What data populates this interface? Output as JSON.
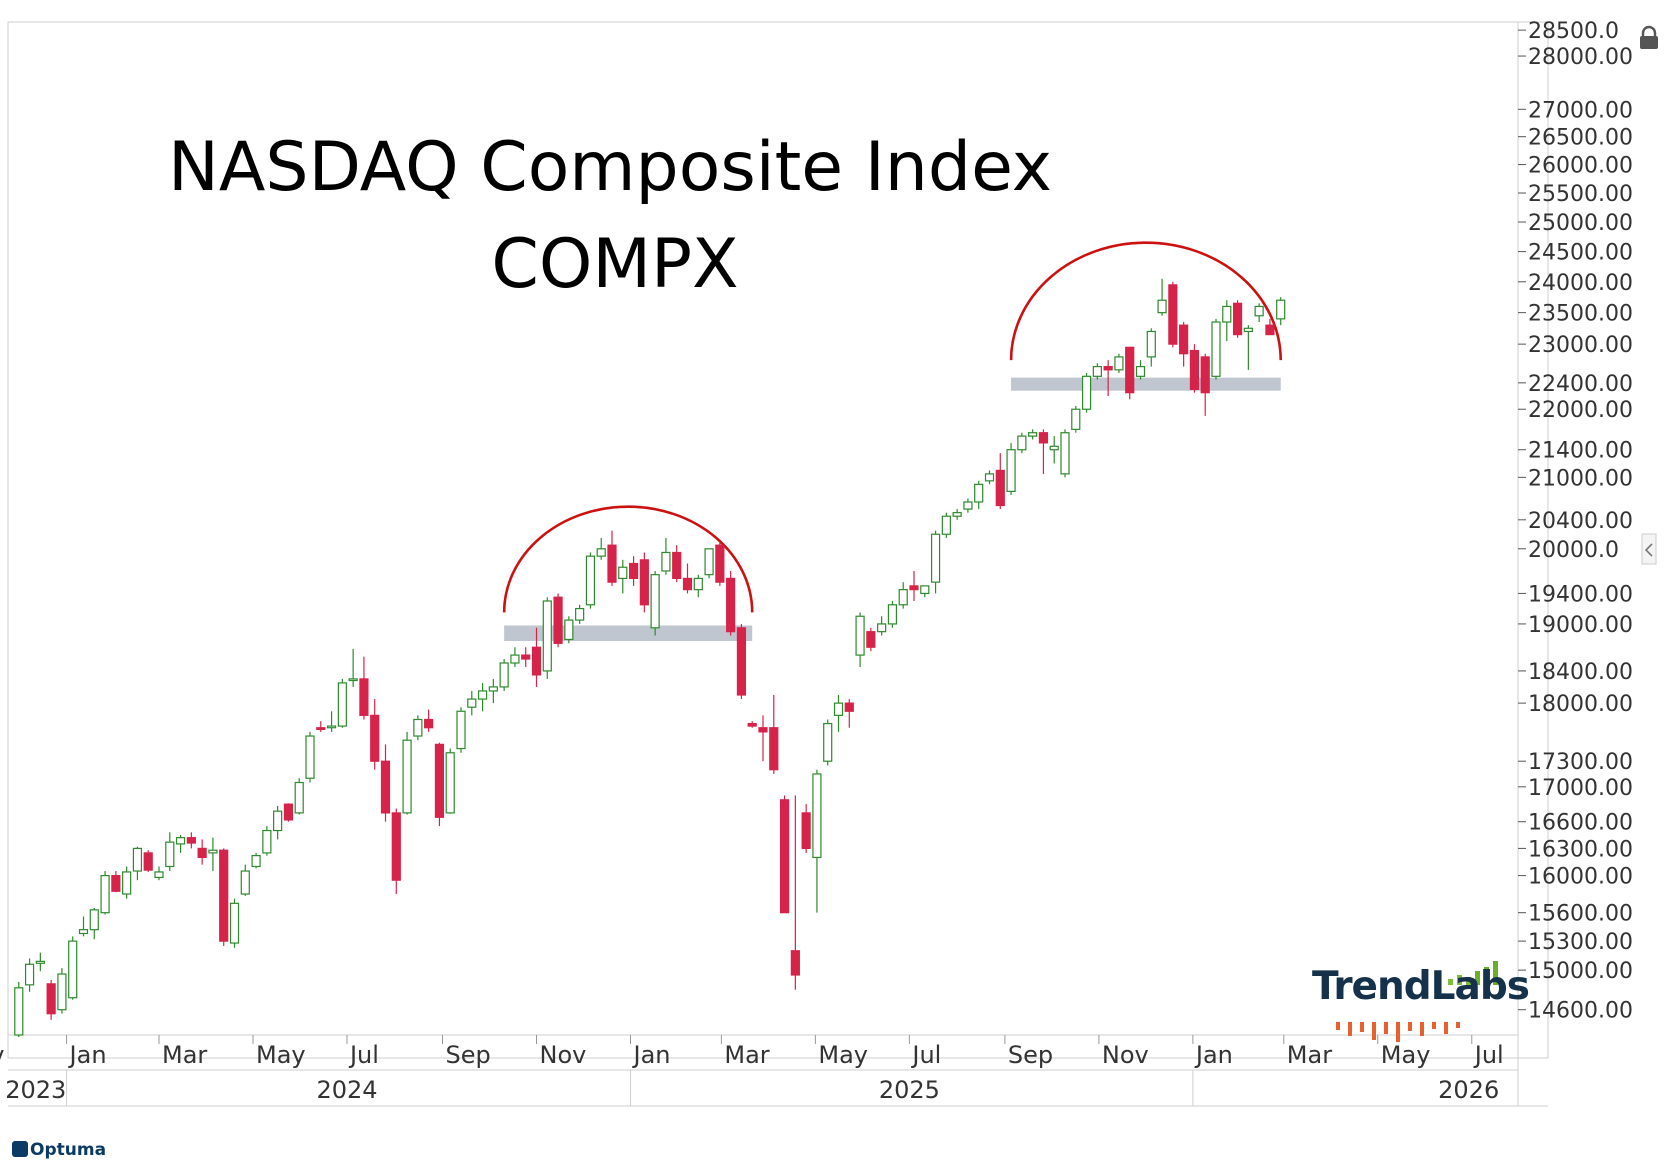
{
  "title": "NASDAQ Composite  Index",
  "symbol": "COMPX",
  "brand": "Optuma",
  "watermark": "TrendLabs",
  "colors": {
    "up": "#2d8a2d",
    "down": "#d6234a",
    "arc": "#cc1111",
    "band": "#bfc6cf",
    "grid": "#d9d9d9"
  },
  "icons": {
    "lock": "lock-icon",
    "collapse": "chevron-left-icon"
  },
  "chart_data": {
    "type": "candlestick",
    "y_scale": "log",
    "ylim": [
      14350,
      28600
    ],
    "y_ticks": [
      {
        "v": 28500,
        "label": "28500.0"
      },
      {
        "v": 28000,
        "label": "28000.00"
      },
      {
        "v": 27000,
        "label": "27000.00"
      },
      {
        "v": 26500,
        "label": "26500.00"
      },
      {
        "v": 26000,
        "label": "26000.00"
      },
      {
        "v": 25500,
        "label": "25500.00"
      },
      {
        "v": 25000,
        "label": "25000.00"
      },
      {
        "v": 24500,
        "label": "24500.00"
      },
      {
        "v": 24000,
        "label": "24000.00"
      },
      {
        "v": 23500,
        "label": "23500.00"
      },
      {
        "v": 23000,
        "label": "23000.00"
      },
      {
        "v": 22400,
        "label": "22400.00"
      },
      {
        "v": 22000,
        "label": "22000.00"
      },
      {
        "v": 21400,
        "label": "21400.00"
      },
      {
        "v": 21000,
        "label": "21000.00"
      },
      {
        "v": 20400,
        "label": "20400.00"
      },
      {
        "v": 20000,
        "label": "20000.0"
      },
      {
        "v": 19400,
        "label": "19400.00"
      },
      {
        "v": 19000,
        "label": "19000.00"
      },
      {
        "v": 18400,
        "label": "18400.00"
      },
      {
        "v": 18000,
        "label": "18000.00"
      },
      {
        "v": 17300,
        "label": "17300.00"
      },
      {
        "v": 17000,
        "label": "17000.00"
      },
      {
        "v": 16600,
        "label": "16600.00"
      },
      {
        "v": 16300,
        "label": "16300.00"
      },
      {
        "v": 16000,
        "label": "16000.00"
      },
      {
        "v": 15600,
        "label": "15600.00"
      },
      {
        "v": 15300,
        "label": "15300.00"
      },
      {
        "v": 15000,
        "label": "15000.00"
      },
      {
        "v": 14600,
        "label": "14600.00"
      }
    ],
    "x_range": [
      "2023-11-24",
      "2026-07-31"
    ],
    "month_ticks": [
      {
        "d": "2023-11-01",
        "label": "ov"
      },
      {
        "d": "2024-01-01",
        "label": "Jan"
      },
      {
        "d": "2024-03-01",
        "label": "Mar"
      },
      {
        "d": "2024-05-01",
        "label": "May"
      },
      {
        "d": "2024-07-01",
        "label": "Jul"
      },
      {
        "d": "2024-09-01",
        "label": "Sep"
      },
      {
        "d": "2024-11-01",
        "label": "Nov"
      },
      {
        "d": "2025-01-01",
        "label": "Jan"
      },
      {
        "d": "2025-03-01",
        "label": "Mar"
      },
      {
        "d": "2025-05-01",
        "label": "May"
      },
      {
        "d": "2025-07-01",
        "label": "Jul"
      },
      {
        "d": "2025-09-01",
        "label": "Sep"
      },
      {
        "d": "2025-11-01",
        "label": "Nov"
      },
      {
        "d": "2026-01-01",
        "label": "Jan"
      },
      {
        "d": "2026-03-01",
        "label": "Mar"
      },
      {
        "d": "2026-05-01",
        "label": "May"
      },
      {
        "d": "2026-07-01",
        "label": "Jul"
      }
    ],
    "year_labels": [
      {
        "label": "2023",
        "at": "2023-12-12"
      },
      {
        "label": "2024",
        "at": "2024-07-01"
      },
      {
        "label": "2025",
        "at": "2025-07-01"
      },
      {
        "label": "2026",
        "at": "2026-06-29"
      }
    ],
    "year_dividers": [
      "2024-01-01",
      "2025-01-01",
      "2026-01-01"
    ],
    "series": [
      {
        "date": "2023-12-01",
        "o": 14350,
        "h": 14880,
        "l": 14330,
        "c": 14820
      },
      {
        "date": "2023-12-08",
        "o": 14850,
        "h": 15120,
        "l": 14780,
        "c": 15060
      },
      {
        "date": "2023-12-15",
        "o": 15070,
        "h": 15180,
        "l": 14990,
        "c": 15090
      },
      {
        "date": "2023-12-22",
        "o": 14860,
        "h": 14900,
        "l": 14500,
        "c": 14560
      },
      {
        "date": "2023-12-29",
        "o": 14600,
        "h": 15020,
        "l": 14560,
        "c": 14960
      },
      {
        "date": "2024-01-05",
        "o": 14720,
        "h": 15350,
        "l": 14700,
        "c": 15300
      },
      {
        "date": "2024-01-12",
        "o": 15380,
        "h": 15560,
        "l": 15350,
        "c": 15420
      },
      {
        "date": "2024-01-19",
        "o": 15420,
        "h": 15650,
        "l": 15320,
        "c": 15630
      },
      {
        "date": "2024-01-26",
        "o": 15600,
        "h": 16050,
        "l": 15580,
        "c": 16000
      },
      {
        "date": "2024-02-02",
        "o": 16000,
        "h": 16050,
        "l": 15820,
        "c": 15830
      },
      {
        "date": "2024-02-09",
        "o": 15800,
        "h": 16100,
        "l": 15750,
        "c": 16040
      },
      {
        "date": "2024-02-16",
        "o": 16050,
        "h": 16320,
        "l": 15950,
        "c": 16300
      },
      {
        "date": "2024-02-23",
        "o": 16250,
        "h": 16280,
        "l": 16040,
        "c": 16060
      },
      {
        "date": "2024-03-01",
        "o": 15980,
        "h": 16100,
        "l": 15950,
        "c": 16040
      },
      {
        "date": "2024-03-08",
        "o": 16100,
        "h": 16480,
        "l": 16050,
        "c": 16370
      },
      {
        "date": "2024-03-15",
        "o": 16350,
        "h": 16450,
        "l": 16250,
        "c": 16420
      },
      {
        "date": "2024-03-22",
        "o": 16420,
        "h": 16480,
        "l": 16300,
        "c": 16360
      },
      {
        "date": "2024-03-29",
        "o": 16300,
        "h": 16400,
        "l": 16120,
        "c": 16200
      },
      {
        "date": "2024-04-05",
        "o": 16250,
        "h": 16420,
        "l": 16050,
        "c": 16280
      },
      {
        "date": "2024-04-12",
        "o": 16280,
        "h": 16300,
        "l": 15250,
        "c": 15300
      },
      {
        "date": "2024-04-19",
        "o": 15280,
        "h": 15750,
        "l": 15230,
        "c": 15700
      },
      {
        "date": "2024-04-26",
        "o": 15800,
        "h": 16120,
        "l": 15780,
        "c": 16050
      },
      {
        "date": "2024-05-03",
        "o": 16100,
        "h": 16250,
        "l": 16080,
        "c": 16220
      },
      {
        "date": "2024-05-10",
        "o": 16250,
        "h": 16550,
        "l": 16220,
        "c": 16500
      },
      {
        "date": "2024-05-17",
        "o": 16500,
        "h": 16780,
        "l": 16400,
        "c": 16720
      },
      {
        "date": "2024-05-24",
        "o": 16800,
        "h": 16810,
        "l": 16600,
        "c": 16620
      },
      {
        "date": "2024-05-31",
        "o": 16700,
        "h": 17100,
        "l": 16680,
        "c": 17050
      },
      {
        "date": "2024-06-07",
        "o": 17100,
        "h": 17650,
        "l": 17050,
        "c": 17600
      },
      {
        "date": "2024-06-14",
        "o": 17700,
        "h": 17780,
        "l": 17650,
        "c": 17680
      },
      {
        "date": "2024-06-21",
        "o": 17700,
        "h": 17900,
        "l": 17650,
        "c": 17720
      },
      {
        "date": "2024-06-28",
        "o": 17720,
        "h": 18300,
        "l": 17700,
        "c": 18250
      },
      {
        "date": "2024-07-05",
        "o": 18280,
        "h": 18680,
        "l": 18200,
        "c": 18300
      },
      {
        "date": "2024-07-12",
        "o": 18300,
        "h": 18580,
        "l": 17800,
        "c": 17850
      },
      {
        "date": "2024-07-19",
        "o": 17850,
        "h": 18050,
        "l": 17200,
        "c": 17300
      },
      {
        "date": "2024-07-26",
        "o": 17300,
        "h": 17500,
        "l": 16600,
        "c": 16700
      },
      {
        "date": "2024-08-02",
        "o": 16700,
        "h": 16750,
        "l": 15800,
        "c": 15950
      },
      {
        "date": "2024-08-09",
        "o": 16700,
        "h": 17650,
        "l": 16680,
        "c": 17550
      },
      {
        "date": "2024-08-16",
        "o": 17600,
        "h": 17850,
        "l": 17550,
        "c": 17800
      },
      {
        "date": "2024-08-23",
        "o": 17800,
        "h": 17920,
        "l": 17650,
        "c": 17700
      },
      {
        "date": "2024-08-30",
        "o": 17500,
        "h": 17520,
        "l": 16550,
        "c": 16650
      },
      {
        "date": "2024-09-06",
        "o": 16700,
        "h": 17450,
        "l": 16690,
        "c": 17400
      },
      {
        "date": "2024-09-13",
        "o": 17450,
        "h": 17950,
        "l": 17400,
        "c": 17900
      },
      {
        "date": "2024-09-20",
        "o": 17950,
        "h": 18150,
        "l": 17850,
        "c": 18050
      },
      {
        "date": "2024-09-27",
        "o": 18050,
        "h": 18250,
        "l": 17900,
        "c": 18150
      },
      {
        "date": "2024-10-04",
        "o": 18150,
        "h": 18300,
        "l": 18000,
        "c": 18200
      },
      {
        "date": "2024-10-11",
        "o": 18200,
        "h": 18550,
        "l": 18150,
        "c": 18500
      },
      {
        "date": "2024-10-18",
        "o": 18500,
        "h": 18700,
        "l": 18450,
        "c": 18600
      },
      {
        "date": "2024-10-25",
        "o": 18600,
        "h": 18700,
        "l": 18450,
        "c": 18550
      },
      {
        "date": "2024-11-01",
        "o": 18700,
        "h": 18950,
        "l": 18200,
        "c": 18350
      },
      {
        "date": "2024-11-08",
        "o": 18400,
        "h": 19350,
        "l": 18300,
        "c": 19300
      },
      {
        "date": "2024-11-15",
        "o": 19350,
        "h": 19400,
        "l": 18700,
        "c": 18750
      },
      {
        "date": "2024-11-22",
        "o": 18800,
        "h": 19100,
        "l": 18750,
        "c": 19050
      },
      {
        "date": "2024-11-29",
        "o": 19050,
        "h": 19250,
        "l": 19000,
        "c": 19200
      },
      {
        "date": "2024-12-06",
        "o": 19250,
        "h": 19950,
        "l": 19200,
        "c": 19900
      },
      {
        "date": "2024-12-13",
        "o": 19900,
        "h": 20150,
        "l": 19850,
        "c": 20000
      },
      {
        "date": "2024-12-20",
        "o": 20050,
        "h": 20250,
        "l": 19500,
        "c": 19550
      },
      {
        "date": "2024-12-27",
        "o": 19600,
        "h": 19850,
        "l": 19400,
        "c": 19750
      },
      {
        "date": "2025-01-03",
        "o": 19800,
        "h": 19900,
        "l": 19500,
        "c": 19600
      },
      {
        "date": "2025-01-10",
        "o": 19850,
        "h": 19950,
        "l": 19150,
        "c": 19250
      },
      {
        "date": "2025-01-17",
        "o": 18950,
        "h": 19700,
        "l": 18850,
        "c": 19650
      },
      {
        "date": "2025-01-24",
        "o": 19700,
        "h": 20150,
        "l": 19650,
        "c": 19950
      },
      {
        "date": "2025-01-31",
        "o": 19950,
        "h": 20050,
        "l": 19550,
        "c": 19600
      },
      {
        "date": "2025-02-07",
        "o": 19600,
        "h": 19800,
        "l": 19400,
        "c": 19450
      },
      {
        "date": "2025-02-14",
        "o": 19450,
        "h": 19650,
        "l": 19350,
        "c": 19600
      },
      {
        "date": "2025-02-21",
        "o": 19650,
        "h": 20000,
        "l": 19600,
        "c": 20000
      },
      {
        "date": "2025-02-28",
        "o": 20050,
        "h": 20100,
        "l": 19500,
        "c": 19550
      },
      {
        "date": "2025-03-07",
        "o": 19600,
        "h": 19700,
        "l": 18850,
        "c": 18900
      },
      {
        "date": "2025-03-14",
        "o": 18950,
        "h": 19000,
        "l": 18050,
        "c": 18100
      },
      {
        "date": "2025-03-21",
        "o": 17750,
        "h": 17780,
        "l": 17700,
        "c": 17720
      },
      {
        "date": "2025-03-28",
        "o": 17700,
        "h": 17850,
        "l": 17300,
        "c": 17650
      },
      {
        "date": "2025-04-04",
        "o": 17700,
        "h": 18100,
        "l": 17150,
        "c": 17200
      },
      {
        "date": "2025-04-11",
        "o": 16850,
        "h": 16900,
        "l": 15800,
        "c": 15600
      },
      {
        "date": "2025-04-18",
        "o": 15200,
        "h": 16900,
        "l": 14800,
        "c": 14950
      },
      {
        "date": "2025-04-25",
        "o": 16700,
        "h": 16800,
        "l": 16250,
        "c": 16300
      },
      {
        "date": "2025-05-02",
        "o": 16200,
        "h": 17200,
        "l": 15600,
        "c": 17150
      },
      {
        "date": "2025-05-09",
        "o": 17300,
        "h": 17800,
        "l": 17250,
        "c": 17750
      },
      {
        "date": "2025-05-16",
        "o": 17850,
        "h": 18100,
        "l": 17650,
        "c": 18000
      },
      {
        "date": "2025-05-23",
        "o": 18000,
        "h": 18050,
        "l": 17700,
        "c": 17900
      },
      {
        "date": "2025-05-30",
        "o": 18600,
        "h": 19150,
        "l": 18450,
        "c": 19100
      },
      {
        "date": "2025-06-06",
        "o": 18900,
        "h": 18950,
        "l": 18650,
        "c": 18700
      },
      {
        "date": "2025-06-13",
        "o": 18900,
        "h": 19100,
        "l": 18850,
        "c": 19000
      },
      {
        "date": "2025-06-20",
        "o": 19000,
        "h": 19300,
        "l": 18950,
        "c": 19250
      },
      {
        "date": "2025-06-27",
        "o": 19250,
        "h": 19550,
        "l": 19200,
        "c": 19450
      },
      {
        "date": "2025-07-04",
        "o": 19500,
        "h": 19700,
        "l": 19300,
        "c": 19450
      },
      {
        "date": "2025-07-11",
        "o": 19400,
        "h": 19500,
        "l": 19350,
        "c": 19500
      },
      {
        "date": "2025-07-18",
        "o": 19550,
        "h": 20250,
        "l": 19400,
        "c": 20200
      },
      {
        "date": "2025-07-25",
        "o": 20200,
        "h": 20500,
        "l": 20150,
        "c": 20450
      },
      {
        "date": "2025-08-01",
        "o": 20450,
        "h": 20550,
        "l": 20400,
        "c": 20500
      },
      {
        "date": "2025-08-08",
        "o": 20550,
        "h": 20700,
        "l": 20500,
        "c": 20650
      },
      {
        "date": "2025-08-15",
        "o": 20650,
        "h": 20950,
        "l": 20550,
        "c": 20900
      },
      {
        "date": "2025-08-22",
        "o": 20950,
        "h": 21100,
        "l": 20900,
        "c": 21050
      },
      {
        "date": "2025-08-29",
        "o": 21100,
        "h": 21350,
        "l": 20550,
        "c": 20600
      },
      {
        "date": "2025-09-05",
        "o": 20800,
        "h": 21500,
        "l": 20750,
        "c": 21400
      },
      {
        "date": "2025-09-12",
        "o": 21400,
        "h": 21650,
        "l": 21350,
        "c": 21600
      },
      {
        "date": "2025-09-19",
        "o": 21600,
        "h": 21700,
        "l": 21550,
        "c": 21650
      },
      {
        "date": "2025-09-26",
        "o": 21650,
        "h": 21700,
        "l": 21050,
        "c": 21500
      },
      {
        "date": "2025-10-03",
        "o": 21400,
        "h": 21600,
        "l": 21200,
        "c": 21450
      },
      {
        "date": "2025-10-10",
        "o": 21050,
        "h": 21700,
        "l": 21000,
        "c": 21650
      },
      {
        "date": "2025-10-17",
        "o": 21700,
        "h": 22050,
        "l": 21650,
        "c": 22000
      },
      {
        "date": "2025-10-24",
        "o": 22000,
        "h": 22550,
        "l": 21950,
        "c": 22500
      },
      {
        "date": "2025-10-31",
        "o": 22500,
        "h": 22700,
        "l": 22450,
        "c": 22650
      },
      {
        "date": "2025-11-07",
        "o": 22650,
        "h": 22750,
        "l": 22200,
        "c": 22600
      },
      {
        "date": "2025-11-14",
        "o": 22600,
        "h": 22850,
        "l": 22550,
        "c": 22800
      },
      {
        "date": "2025-11-21",
        "o": 22950,
        "h": 22950,
        "l": 22150,
        "c": 22250
      },
      {
        "date": "2025-11-28",
        "o": 22500,
        "h": 22750,
        "l": 22450,
        "c": 22650
      },
      {
        "date": "2025-12-05",
        "o": 22800,
        "h": 23250,
        "l": 22650,
        "c": 23200
      },
      {
        "date": "2025-12-12",
        "o": 23500,
        "h": 24050,
        "l": 23450,
        "c": 23700
      },
      {
        "date": "2025-12-19",
        "o": 23950,
        "h": 24000,
        "l": 22950,
        "c": 23000
      },
      {
        "date": "2025-12-26",
        "o": 23300,
        "h": 23350,
        "l": 22650,
        "c": 22850
      },
      {
        "date": "2026-01-02",
        "o": 22900,
        "h": 23000,
        "l": 22250,
        "c": 22300
      },
      {
        "date": "2026-01-09",
        "o": 22800,
        "h": 22850,
        "l": 21900,
        "c": 22250
      },
      {
        "date": "2026-01-16",
        "o": 22500,
        "h": 23400,
        "l": 22450,
        "c": 23350
      },
      {
        "date": "2026-01-23",
        "o": 23350,
        "h": 23700,
        "l": 23050,
        "c": 23600
      },
      {
        "date": "2026-01-30",
        "o": 23650,
        "h": 23700,
        "l": 23100,
        "c": 23150
      },
      {
        "date": "2026-02-06",
        "o": 23200,
        "h": 23300,
        "l": 22600,
        "c": 23250
      },
      {
        "date": "2026-02-13",
        "o": 23450,
        "h": 23650,
        "l": 23350,
        "c": 23600
      },
      {
        "date": "2026-02-20",
        "o": 23300,
        "h": 23400,
        "l": 23150,
        "c": 23150
      },
      {
        "date": "2026-02-27",
        "o": 23400,
        "h": 23750,
        "l": 23300,
        "c": 23700
      }
    ]
  }
}
